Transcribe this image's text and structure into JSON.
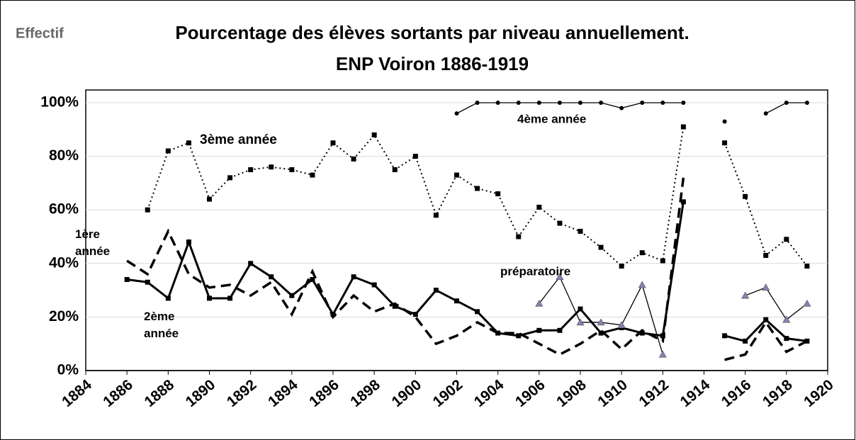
{
  "chart_data": {
    "type": "line",
    "title": "Pourcentage des  élèves sortants par niveau annuellement.",
    "subtitle": "ENP Voiron 1886-1919",
    "corner_label": "Effectif",
    "x": [
      1886,
      1887,
      1888,
      1889,
      1890,
      1891,
      1892,
      1893,
      1894,
      1895,
      1896,
      1897,
      1898,
      1899,
      1900,
      1901,
      1902,
      1903,
      1904,
      1905,
      1906,
      1907,
      1908,
      1909,
      1910,
      1911,
      1912,
      1913,
      1914,
      1915,
      1916,
      1917,
      1918,
      1919
    ],
    "series": [
      {
        "name": "3ème année",
        "color": "#000000",
        "dash": "dotted",
        "marker": "square",
        "values": [
          null,
          60,
          82,
          85,
          64,
          72,
          75,
          76,
          75,
          73,
          85,
          79,
          88,
          75,
          80,
          58,
          73,
          68,
          66,
          50,
          61,
          55,
          52,
          46,
          39,
          44,
          41,
          91,
          null,
          85,
          65,
          43,
          49,
          39
        ]
      },
      {
        "name": "4ème année",
        "color": "#000000",
        "dash": "solid-thin",
        "marker": "circle",
        "values": [
          null,
          null,
          null,
          null,
          null,
          null,
          null,
          null,
          null,
          null,
          null,
          null,
          null,
          null,
          null,
          null,
          96,
          100,
          100,
          100,
          100,
          100,
          100,
          100,
          98,
          100,
          100,
          100,
          null,
          93,
          null,
          96,
          100,
          100
        ]
      },
      {
        "name": "2ème année",
        "color": "#000000",
        "dash": "solid",
        "marker": "square",
        "values": [
          34,
          33,
          27,
          48,
          27,
          27,
          40,
          35,
          28,
          34,
          21,
          35,
          32,
          24,
          21,
          30,
          26,
          22,
          14,
          13,
          15,
          15,
          23,
          14,
          16,
          14,
          13,
          63,
          null,
          13,
          11,
          19,
          12,
          11
        ]
      },
      {
        "name": "1ère année",
        "color": "#000000",
        "dash": "dashed",
        "marker": "none",
        "values": [
          41,
          36,
          52,
          36,
          31,
          32,
          28,
          33,
          21,
          37,
          20,
          28,
          22,
          25,
          20,
          10,
          13,
          18,
          14,
          14,
          10,
          6,
          10,
          15,
          8,
          15,
          11,
          72,
          null,
          4,
          6,
          18,
          7,
          11
        ]
      },
      {
        "name": "préparatoire",
        "color": "#000000",
        "marker_color": "#8a7fb0",
        "dash": "solid-thin",
        "marker": "triangle",
        "values": [
          null,
          null,
          null,
          null,
          null,
          null,
          null,
          null,
          null,
          null,
          null,
          null,
          null,
          null,
          null,
          null,
          null,
          null,
          null,
          null,
          25,
          35,
          18,
          18,
          17,
          32,
          6,
          null,
          null,
          null,
          28,
          31,
          19,
          25
        ]
      }
    ],
    "xlim": [
      1884,
      1920
    ],
    "xticks": [
      1884,
      1886,
      1888,
      1890,
      1892,
      1894,
      1896,
      1898,
      1900,
      1902,
      1904,
      1906,
      1908,
      1910,
      1912,
      1914,
      1916,
      1918,
      1920
    ],
    "ylim": [
      0,
      100
    ],
    "yticks": [
      {
        "value": 0,
        "label": "0%"
      },
      {
        "value": 20,
        "label": "20%"
      },
      {
        "value": 40,
        "label": "40%"
      },
      {
        "value": 60,
        "label": "60%"
      },
      {
        "value": 80,
        "label": "80%"
      },
      {
        "value": 100,
        "label": "100%"
      }
    ],
    "grid": true
  }
}
